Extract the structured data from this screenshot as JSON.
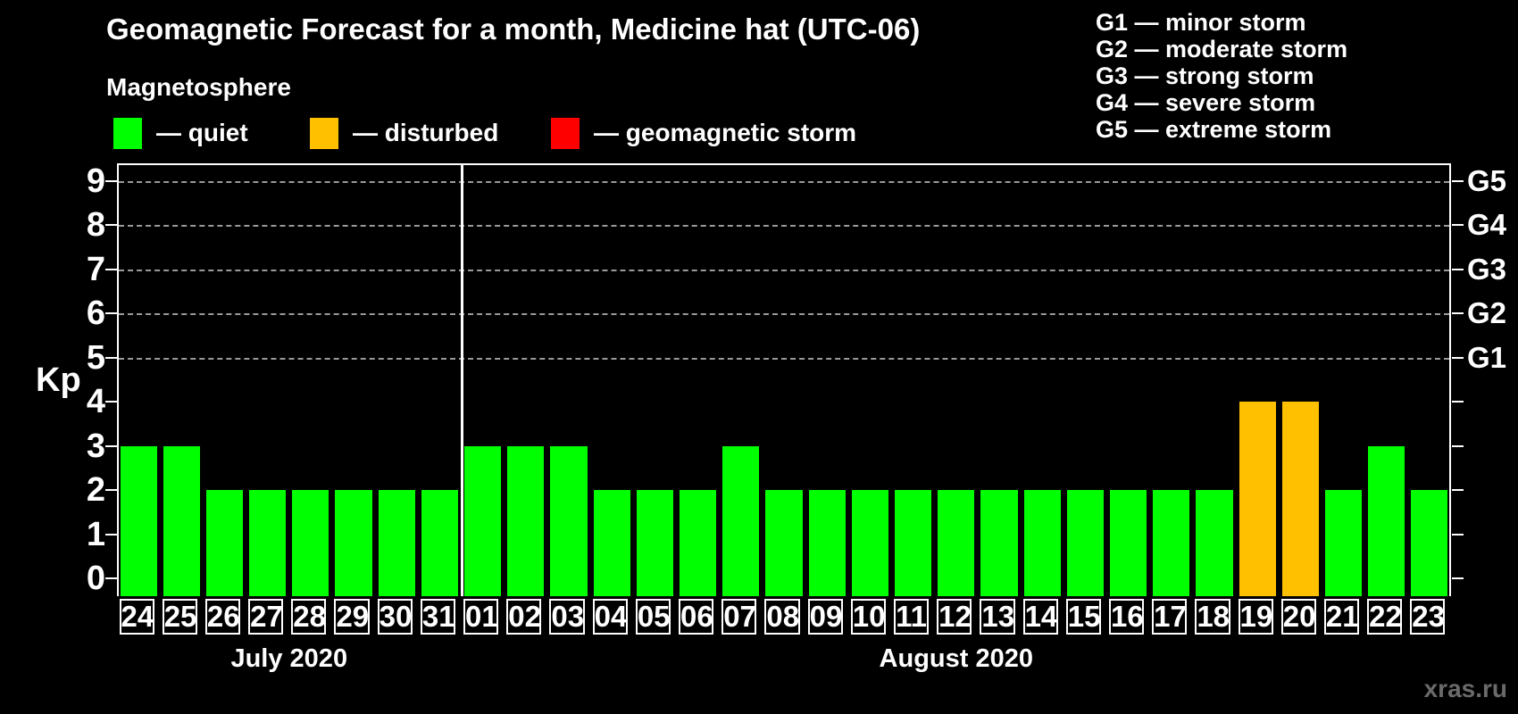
{
  "legend": {
    "header": "Magnetosphere",
    "items": [
      {
        "label": "— quiet",
        "color": "#00ff00"
      },
      {
        "label": "— disturbed",
        "color": "#ffc000"
      },
      {
        "label": "— geomagnetic storm",
        "color": "#ff0000"
      }
    ]
  },
  "g_legend": {
    "items": [
      "G1 — minor storm",
      "G2 — moderate storm",
      "G3 — strong storm",
      "G4 — severe storm",
      "G5 — extreme storm"
    ]
  },
  "watermark": "xras.ru",
  "chart_data": {
    "type": "bar",
    "title": "Geomagnetic Forecast for a month, Medicine hat (UTC-06)",
    "ylabel": "Kp",
    "ylim": [
      -0.4,
      9.4
    ],
    "yticks": [
      0,
      1,
      2,
      3,
      4,
      5,
      6,
      7,
      8,
      9
    ],
    "grid_levels": [
      5,
      6,
      7,
      8,
      9
    ],
    "right_axis": {
      "labels": [
        "G1",
        "G2",
        "G3",
        "G4",
        "G5"
      ],
      "levels": [
        5,
        6,
        7,
        8,
        9
      ]
    },
    "months": [
      {
        "label": "July 2020",
        "days": 8
      },
      {
        "label": "August 2020",
        "days": 23
      }
    ],
    "categories": [
      "24",
      "25",
      "26",
      "27",
      "28",
      "29",
      "30",
      "31",
      "01",
      "02",
      "03",
      "04",
      "05",
      "06",
      "07",
      "08",
      "09",
      "10",
      "11",
      "12",
      "13",
      "14",
      "15",
      "16",
      "17",
      "18",
      "19",
      "20",
      "21",
      "22",
      "23"
    ],
    "values": [
      3,
      3,
      2,
      2,
      2,
      2,
      2,
      2,
      3,
      3,
      3,
      2,
      2,
      2,
      3,
      2,
      2,
      2,
      2,
      2,
      2,
      2,
      2,
      2,
      2,
      2,
      4,
      4,
      2,
      3,
      2
    ],
    "states": [
      "quiet",
      "quiet",
      "quiet",
      "quiet",
      "quiet",
      "quiet",
      "quiet",
      "quiet",
      "quiet",
      "quiet",
      "quiet",
      "quiet",
      "quiet",
      "quiet",
      "quiet",
      "quiet",
      "quiet",
      "quiet",
      "quiet",
      "quiet",
      "quiet",
      "quiet",
      "quiet",
      "quiet",
      "quiet",
      "quiet",
      "disturbed",
      "disturbed",
      "quiet",
      "quiet",
      "quiet"
    ],
    "colors": {
      "quiet": "#00ff00",
      "disturbed": "#ffc000",
      "storm": "#ff0000"
    },
    "legend_position": "top-left",
    "grid": "dashed horizontal at Kp 5-9"
  }
}
